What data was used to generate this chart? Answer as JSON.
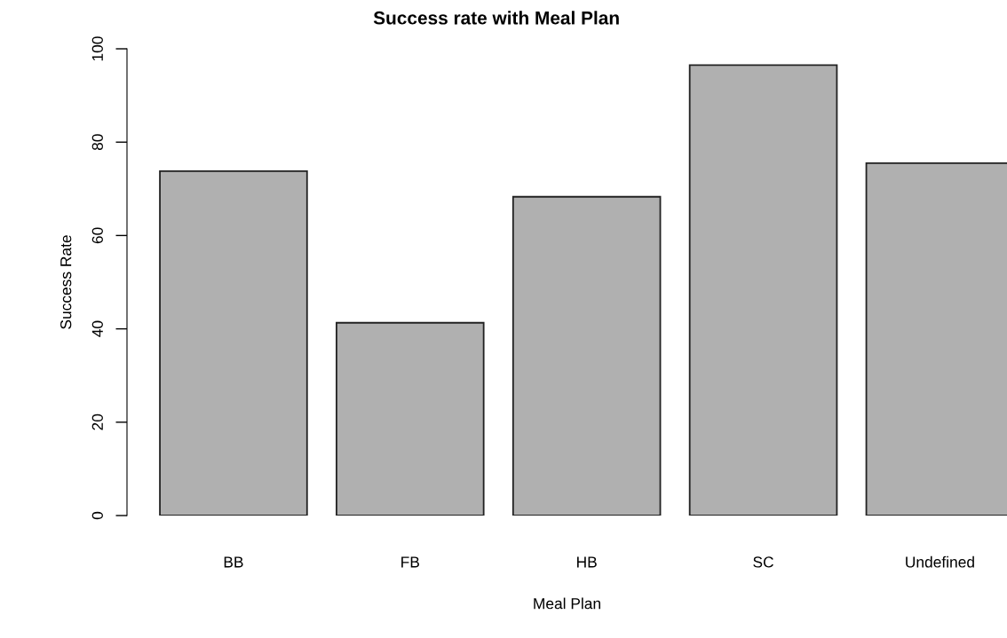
{
  "chart_data": {
    "type": "bar",
    "title": "Success rate with Meal Plan",
    "xlabel": "Meal Plan",
    "ylabel": "Success Rate",
    "categories": [
      "BB",
      "FB",
      "HB",
      "SC",
      "Undefined"
    ],
    "values": [
      73.8,
      41.3,
      68.3,
      96.5,
      75.5
    ],
    "color": "#b0b0b0",
    "ylim": [
      0,
      100
    ],
    "yticks": [
      0,
      20,
      40,
      60,
      80,
      100
    ],
    "grid": false,
    "legend": false
  }
}
